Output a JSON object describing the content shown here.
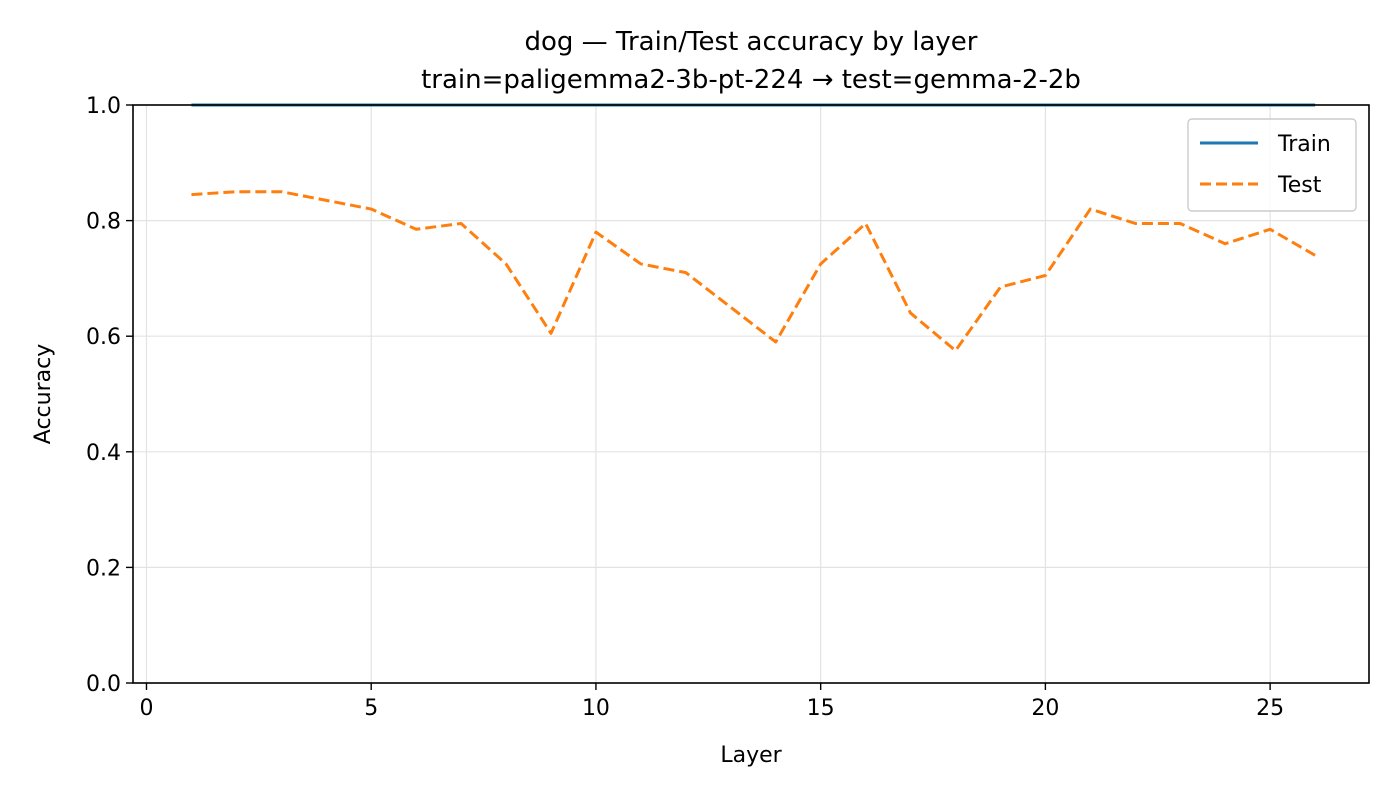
{
  "chart_data": {
    "type": "line",
    "title": "dog — Train/Test accuracy by layer",
    "subtitle": "train=paligemma2-3b-pt-224 → test=gemma-2-2b",
    "xlabel": "Layer",
    "ylabel": "Accuracy",
    "xlim": [
      -0.3,
      27.2
    ],
    "ylim": [
      0.0,
      1.0
    ],
    "xticks": [
      0,
      5,
      10,
      15,
      20,
      25
    ],
    "yticks": [
      0.0,
      0.2,
      0.4,
      0.6,
      0.8,
      1.0
    ],
    "xtick_labels": [
      "0",
      "5",
      "10",
      "15",
      "20",
      "25"
    ],
    "ytick_labels": [
      "0.0",
      "0.2",
      "0.4",
      "0.6",
      "0.8",
      "1.0"
    ],
    "grid": true,
    "legend_position": "top-right",
    "x": [
      1,
      2,
      3,
      4,
      5,
      6,
      7,
      8,
      9,
      10,
      11,
      12,
      13,
      14,
      15,
      16,
      17,
      18,
      19,
      20,
      21,
      22,
      23,
      24,
      25,
      26
    ],
    "series": [
      {
        "name": "Train",
        "color": "#1f77b4",
        "style": "solid",
        "values": [
          1.0,
          1.0,
          1.0,
          1.0,
          1.0,
          1.0,
          1.0,
          1.0,
          1.0,
          1.0,
          1.0,
          1.0,
          1.0,
          1.0,
          1.0,
          1.0,
          1.0,
          1.0,
          1.0,
          1.0,
          1.0,
          1.0,
          1.0,
          1.0,
          1.0,
          1.0
        ]
      },
      {
        "name": "Test",
        "color": "#ff7f0e",
        "style": "dashed",
        "values": [
          0.845,
          0.85,
          0.85,
          0.835,
          0.82,
          0.785,
          0.795,
          0.725,
          0.605,
          0.78,
          0.725,
          0.71,
          0.65,
          0.59,
          0.725,
          0.795,
          0.64,
          0.575,
          0.685,
          0.705,
          0.82,
          0.795,
          0.795,
          0.76,
          0.785,
          0.74
        ]
      }
    ]
  }
}
